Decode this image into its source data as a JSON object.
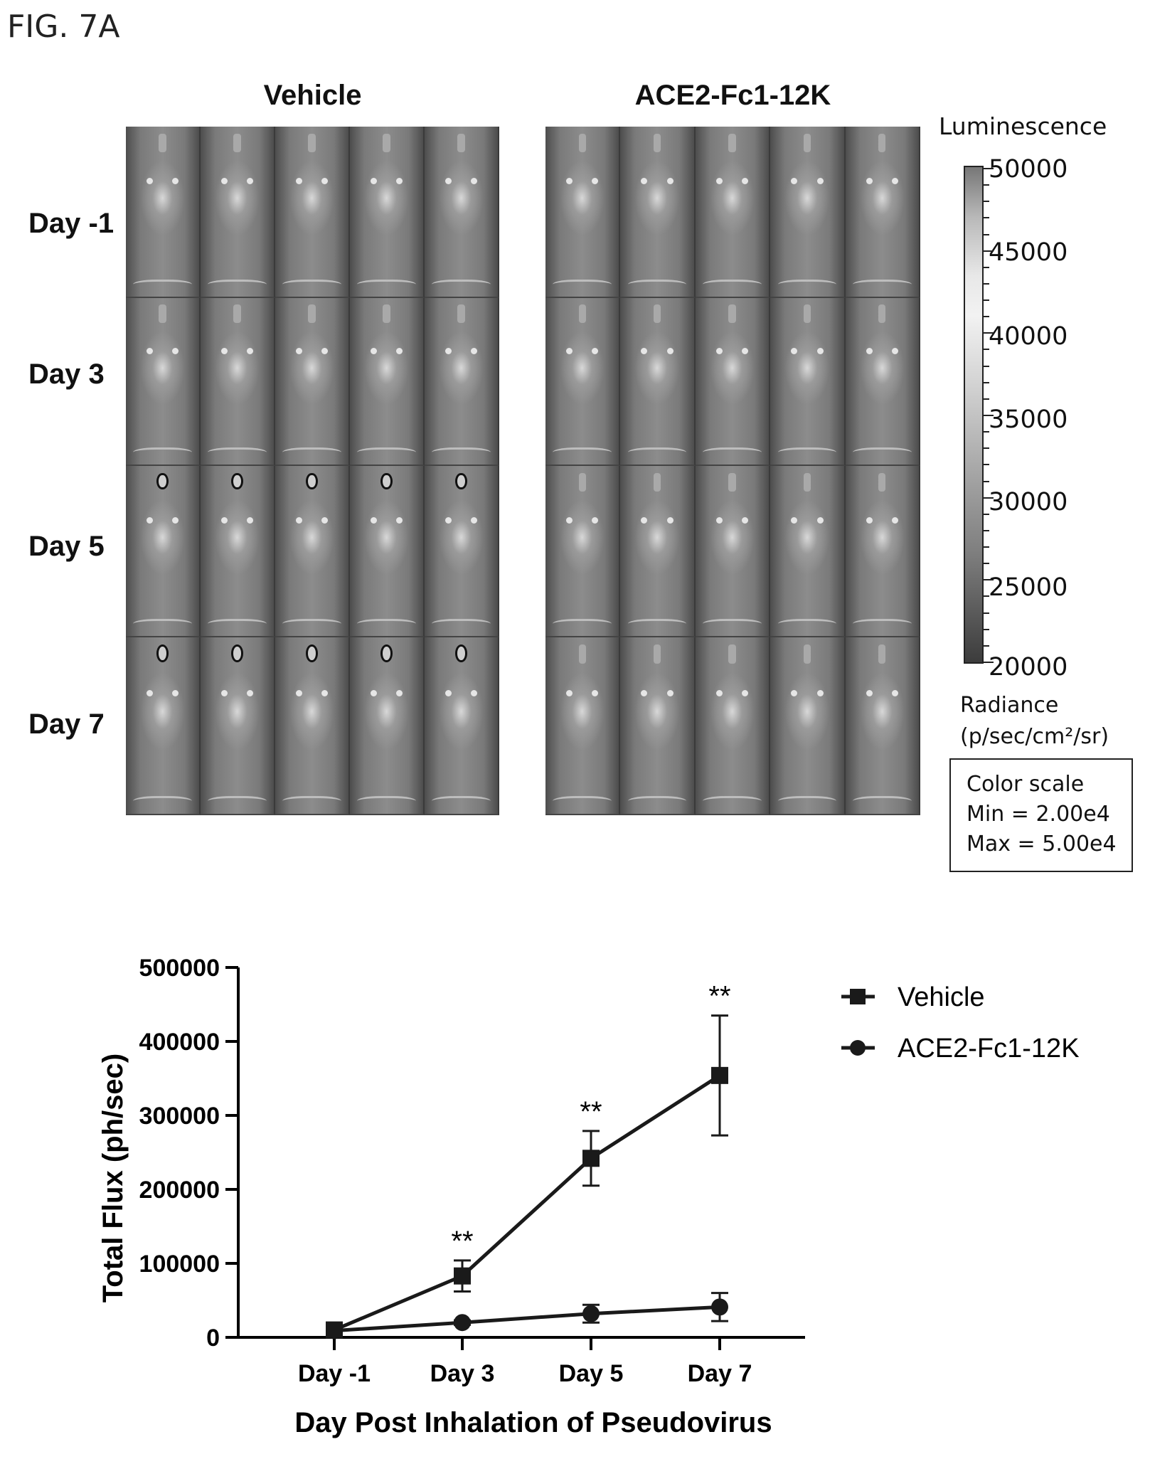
{
  "figure_label": "FIG. 7A",
  "imaging": {
    "columns": [
      "Vehicle",
      "ACE2-Fc1-12K"
    ],
    "rows": [
      "Day -1",
      "Day 3",
      "Day 5",
      "Day 7"
    ],
    "legend_title": "Luminescence",
    "colorbar_ticks": [
      "50000",
      "45000",
      "40000",
      "35000",
      "30000",
      "25000",
      "20000"
    ],
    "radiance_label": "Radiance",
    "radiance_unit": "(p/sec/cm²/sr)",
    "color_scale": {
      "title": "Color scale",
      "min": "Min = 2.00e4",
      "max": "Max = 5.00e4"
    }
  },
  "chart_data": {
    "type": "line",
    "xlabel": "Day Post Inhalation of Pseudovirus",
    "ylabel": "Total Flux (ph/sec)",
    "categories": [
      "Day -1",
      "Day 3",
      "Day 5",
      "Day 7"
    ],
    "ylim": [
      0,
      500000
    ],
    "yticks": [
      "0",
      "100000",
      "200000",
      "300000",
      "400000",
      "500000"
    ],
    "legend_position": "top-right",
    "series": [
      {
        "name": "Vehicle",
        "marker": "square",
        "values": [
          10000,
          83000,
          242000,
          354000
        ],
        "error": [
          3000,
          21000,
          37000,
          81000
        ],
        "significance": [
          "",
          "**",
          "**",
          "**"
        ]
      },
      {
        "name": "ACE2-Fc1-12K",
        "marker": "circle",
        "values": [
          9000,
          20000,
          32000,
          41000
        ],
        "error": [
          2000,
          3000,
          12000,
          19000
        ],
        "significance": [
          "",
          "",
          "",
          ""
        ]
      }
    ]
  }
}
